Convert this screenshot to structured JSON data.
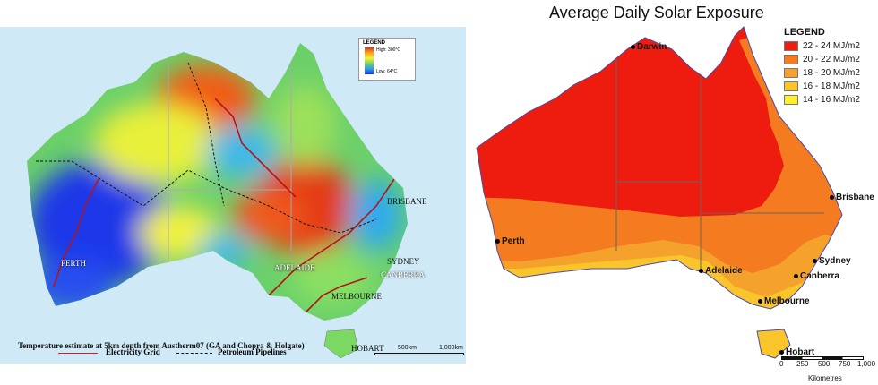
{
  "left_map": {
    "legend": {
      "title": "LEGEND",
      "high": "High: 300°C",
      "low": "Low: 64°C"
    },
    "cities": [
      "BRISBANE",
      "PERTH",
      "SYDNEY",
      "ADELAIDE",
      "CANBERRA",
      "MELBOURNE",
      "HOBART"
    ],
    "caption": "Temperature estimate at 5km depth from Austherm07 (GA and Chopra & Holgate)",
    "line_legend": {
      "grid": "Electricity Grid",
      "pipelines": "Petroleum Pipelines"
    },
    "scale": {
      "mid": "500km",
      "end": "1,000km"
    }
  },
  "right_map": {
    "title": "Average Daily Solar Exposure",
    "legend": {
      "title": "LEGEND",
      "items": [
        {
          "label": "22 - 24 MJ/m2",
          "color": "#ee1c0e"
        },
        {
          "label": "20 - 22 MJ/m2",
          "color": "#f47b20"
        },
        {
          "label": "18 - 20 MJ/m2",
          "color": "#f5a22c"
        },
        {
          "label": "16 - 18 MJ/m2",
          "color": "#f9c52b"
        },
        {
          "label": "14 - 16 MJ/m2",
          "color": "#fcf02e"
        }
      ]
    },
    "cities": [
      "Darwin",
      "Brisbane",
      "Perth",
      "Sydney",
      "Adelaide",
      "Canberra",
      "Melbourne",
      "Hobart"
    ],
    "scale": {
      "ticks": [
        "0",
        "250",
        "500",
        "750",
        "1,000"
      ],
      "unit": "Kilometres"
    }
  }
}
